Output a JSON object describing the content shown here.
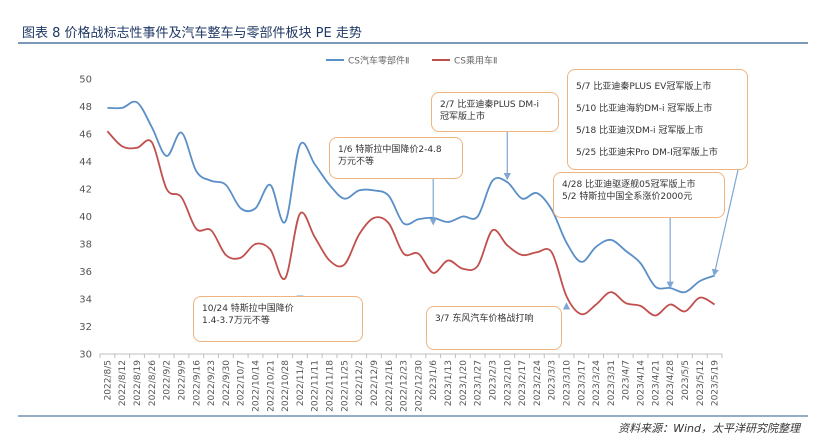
{
  "top_strip": "",
  "title": "图表 8 价格战标志性事件及汽车整车与零部件板块 PE 走势",
  "source": "资料来源：Wind，太平洋研究院整理",
  "colors": {
    "series1": "#5b8fc7",
    "series2": "#c0504d",
    "title": "#1f3864",
    "rule": "#2e5c8a",
    "callout_border": "#f0b47e",
    "arrow": "#7fa7d4",
    "grid": "#d9d9d9"
  },
  "chart_data": {
    "type": "line",
    "title": "",
    "xlabel": "",
    "ylabel": "",
    "ylim": [
      30,
      50
    ],
    "yticks": [
      30,
      32,
      34,
      36,
      38,
      40,
      42,
      44,
      46,
      48,
      50
    ],
    "x_tick_labels": [
      "2022/8/5",
      "2022/8/12",
      "2022/8/19",
      "2022/8/26",
      "2022/9/2",
      "2022/9/9",
      "2022/9/16",
      "2022/9/23",
      "2022/9/30",
      "2022/10/7",
      "2022/10/14",
      "2022/10/21",
      "2022/10/28",
      "2022/11/4",
      "2022/11/11",
      "2022/11/18",
      "2022/11/25",
      "2022/12/2",
      "2022/12/9",
      "2022/12/16",
      "2022/12/23",
      "2022/12/30",
      "2023/1/6",
      "2023/1/13",
      "2023/1/20",
      "2023/1/27",
      "2023/2/3",
      "2023/2/10",
      "2023/2/17",
      "2023/2/24",
      "2023/3/3",
      "2023/3/10",
      "2023/3/17",
      "2023/3/24",
      "2023/3/31",
      "2023/4/7",
      "2023/4/14",
      "2023/4/21",
      "2023/4/28",
      "2023/5/5",
      "2023/5/12",
      "2023/5/19"
    ],
    "legend_position": "top-left",
    "grid": false,
    "series": [
      {
        "name": "CS汽车零部件Ⅱ",
        "color": "#5b8fc7",
        "points": [
          [
            "2022/8/5",
            47.9
          ],
          [
            "2022/8/12",
            47.9
          ],
          [
            "2022/8/19",
            48.3
          ],
          [
            "2022/8/26",
            46.5
          ],
          [
            "2022/9/2",
            44.4
          ],
          [
            "2022/9/9",
            46.1
          ],
          [
            "2022/9/16",
            43.3
          ],
          [
            "2022/9/23",
            42.6
          ],
          [
            "2022/9/30",
            42.3
          ],
          [
            "2022/10/7",
            40.6
          ],
          [
            "2022/10/14",
            40.6
          ],
          [
            "2022/10/21",
            42.3
          ],
          [
            "2022/10/28",
            39.6
          ],
          [
            "2022/11/4",
            45.2
          ],
          [
            "2022/11/11",
            43.8
          ],
          [
            "2022/11/18",
            42.3
          ],
          [
            "2022/11/25",
            41.3
          ],
          [
            "2022/12/2",
            41.9
          ],
          [
            "2022/12/9",
            41.9
          ],
          [
            "2022/12/16",
            41.5
          ],
          [
            "2022/12/23",
            39.5
          ],
          [
            "2022/12/30",
            39.8
          ],
          [
            "2023/1/6",
            39.9
          ],
          [
            "2023/1/13",
            39.6
          ],
          [
            "2023/1/20",
            40.0
          ],
          [
            "2023/1/27",
            40.0
          ],
          [
            "2023/2/3",
            42.6
          ],
          [
            "2023/2/10",
            42.5
          ],
          [
            "2023/2/17",
            41.3
          ],
          [
            "2023/2/24",
            41.7
          ],
          [
            "2023/3/3",
            40.5
          ],
          [
            "2023/3/10",
            38.1
          ],
          [
            "2023/3/17",
            36.7
          ],
          [
            "2023/3/24",
            37.8
          ],
          [
            "2023/3/31",
            38.3
          ],
          [
            "2023/4/7",
            37.5
          ],
          [
            "2023/4/14",
            36.6
          ],
          [
            "2023/4/21",
            34.9
          ],
          [
            "2023/4/28",
            34.8
          ],
          [
            "2023/5/5",
            34.5
          ],
          [
            "2023/5/12",
            35.3
          ],
          [
            "2023/5/19",
            35.7
          ]
        ]
      },
      {
        "name": "CS乘用车Ⅱ",
        "color": "#c0504d",
        "points": [
          [
            "2022/8/5",
            46.2
          ],
          [
            "2022/8/12",
            45.1
          ],
          [
            "2022/8/19",
            45.0
          ],
          [
            "2022/8/26",
            45.4
          ],
          [
            "2022/9/2",
            42.0
          ],
          [
            "2022/9/9",
            41.4
          ],
          [
            "2022/9/16",
            39.1
          ],
          [
            "2022/9/23",
            39.0
          ],
          [
            "2022/9/30",
            37.2
          ],
          [
            "2022/10/7",
            37.0
          ],
          [
            "2022/10/14",
            38.0
          ],
          [
            "2022/10/21",
            37.6
          ],
          [
            "2022/10/28",
            35.5
          ],
          [
            "2022/11/4",
            40.2
          ],
          [
            "2022/11/11",
            38.5
          ],
          [
            "2022/11/18",
            36.8
          ],
          [
            "2022/11/25",
            36.5
          ],
          [
            "2022/12/2",
            38.7
          ],
          [
            "2022/12/9",
            39.9
          ],
          [
            "2022/12/16",
            39.5
          ],
          [
            "2022/12/23",
            37.3
          ],
          [
            "2022/12/30",
            37.3
          ],
          [
            "2023/1/6",
            35.9
          ],
          [
            "2023/1/13",
            36.8
          ],
          [
            "2023/1/20",
            36.2
          ],
          [
            "2023/1/27",
            36.4
          ],
          [
            "2023/2/3",
            39.0
          ],
          [
            "2023/2/10",
            37.9
          ],
          [
            "2023/2/17",
            37.2
          ],
          [
            "2023/2/24",
            37.4
          ],
          [
            "2023/3/3",
            37.4
          ],
          [
            "2023/3/10",
            34.2
          ],
          [
            "2023/3/17",
            32.9
          ],
          [
            "2023/3/24",
            33.6
          ],
          [
            "2023/3/31",
            34.5
          ],
          [
            "2023/4/7",
            33.7
          ],
          [
            "2023/4/14",
            33.5
          ],
          [
            "2023/4/21",
            32.8
          ],
          [
            "2023/4/28",
            33.6
          ],
          [
            "2023/5/5",
            33.1
          ],
          [
            "2023/5/12",
            34.1
          ],
          [
            "2023/5/19",
            33.6
          ]
        ]
      }
    ],
    "annotations": [
      {
        "id": "ann-1024",
        "anchor_x": "2022/11/4",
        "anchor_y": 34.0,
        "direction": "up",
        "lines": [
          "10/24  特斯拉中国降价",
          "1.4-3.7万元不等"
        ]
      },
      {
        "id": "ann-0106",
        "anchor_x": "2023/1/6",
        "anchor_y": 39.6,
        "direction": "down",
        "lines": [
          "1/6  特斯拉中国降价2-4.8",
          "万元不等"
        ]
      },
      {
        "id": "ann-0207",
        "anchor_x": "2023/2/10",
        "anchor_y": 42.9,
        "direction": "down",
        "lines": [
          "2/7  比亚迪秦PLUS DM-i",
          "冠军版上市"
        ]
      },
      {
        "id": "ann-0307",
        "anchor_x": "2023/3/10",
        "anchor_y": 33.5,
        "direction": "up",
        "lines": [
          "3/7  东风汽车价格战打响"
        ]
      },
      {
        "id": "ann-0428",
        "anchor_x": "2023/4/28",
        "anchor_y": 35.0,
        "direction": "down",
        "lines": [
          "4/28  比亚迪驱逐舰05冠军版上市",
          "5/2  特斯拉中国全系涨价2000元"
        ]
      },
      {
        "id": "ann-0507",
        "anchor_x": "2023/5/19",
        "anchor_y": 35.9,
        "direction": "down",
        "lines": [
          "5/7  比亚迪秦PLUS EV冠军版上市",
          "5/10  比亚迪海豹DM-i 冠军版上市",
          "5/18  比亚迪汉DM-i 冠军版上市",
          "5/25  比亚迪宋Pro DM-I冠军版上市"
        ]
      }
    ]
  }
}
